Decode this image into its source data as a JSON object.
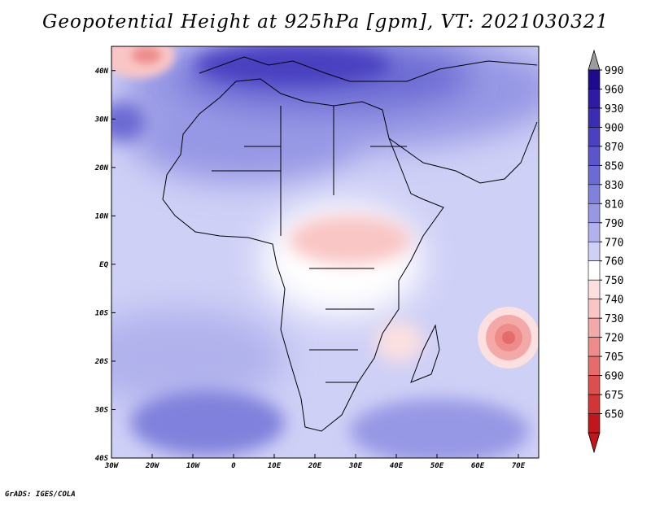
{
  "title": "Geopotential Height at 925hPa [gpm], VT: 2021030321",
  "credit": "GrADS: IGES/COLA",
  "map": {
    "lon_range": [
      -30,
      75
    ],
    "lat_range": [
      -40,
      45
    ],
    "lon_ticks": [
      {
        "value": -30,
        "label": "30W"
      },
      {
        "value": -20,
        "label": "20W"
      },
      {
        "value": -10,
        "label": "10W"
      },
      {
        "value": 0,
        "label": "0"
      },
      {
        "value": 10,
        "label": "10E"
      },
      {
        "value": 20,
        "label": "20E"
      },
      {
        "value": 30,
        "label": "30E"
      },
      {
        "value": 40,
        "label": "40E"
      },
      {
        "value": 50,
        "label": "50E"
      },
      {
        "value": 60,
        "label": "60E"
      },
      {
        "value": 70,
        "label": "70E"
      }
    ],
    "lat_ticks": [
      {
        "value": 40,
        "label": "40N"
      },
      {
        "value": 30,
        "label": "30N"
      },
      {
        "value": 20,
        "label": "20N"
      },
      {
        "value": 10,
        "label": "10N"
      },
      {
        "value": 0,
        "label": "EQ"
      },
      {
        "value": -10,
        "label": "10S"
      },
      {
        "value": -20,
        "label": "20S"
      },
      {
        "value": -30,
        "label": "30S"
      },
      {
        "value": -40,
        "label": "40S"
      }
    ],
    "field_features": [
      {
        "type": "low",
        "lon": 69,
        "lat": -15.5,
        "value": 715
      },
      {
        "type": "low",
        "lon": -22,
        "lat": 43,
        "value": 735
      },
      {
        "type": "low",
        "lon": 28,
        "lat": 6,
        "value": 750
      },
      {
        "type": "high",
        "lon": 17,
        "lat": 39,
        "value": 910
      },
      {
        "type": "high",
        "lon": -30,
        "lat": 29,
        "value": 880
      }
    ]
  },
  "colorbar": {
    "levels": [
      "990",
      "960",
      "930",
      "900",
      "870",
      "850",
      "830",
      "810",
      "790",
      "770",
      "760",
      "750",
      "740",
      "730",
      "720",
      "705",
      "690",
      "675",
      "650"
    ],
    "colors": [
      "#1e0a8c",
      "#2e1aa4",
      "#3b2cb4",
      "#4a40c0",
      "#5b55c9",
      "#6c6ad3",
      "#8081dc",
      "#9798e5",
      "#b1b2ed",
      "#cfd0f6",
      "#ffffff",
      "#fce0e0",
      "#f9c5c5",
      "#f4a9a9",
      "#ee8b8b",
      "#e66c6c",
      "#dd4f4f",
      "#d23535",
      "#c0161c"
    ],
    "over_color": "#9c9c9c"
  }
}
